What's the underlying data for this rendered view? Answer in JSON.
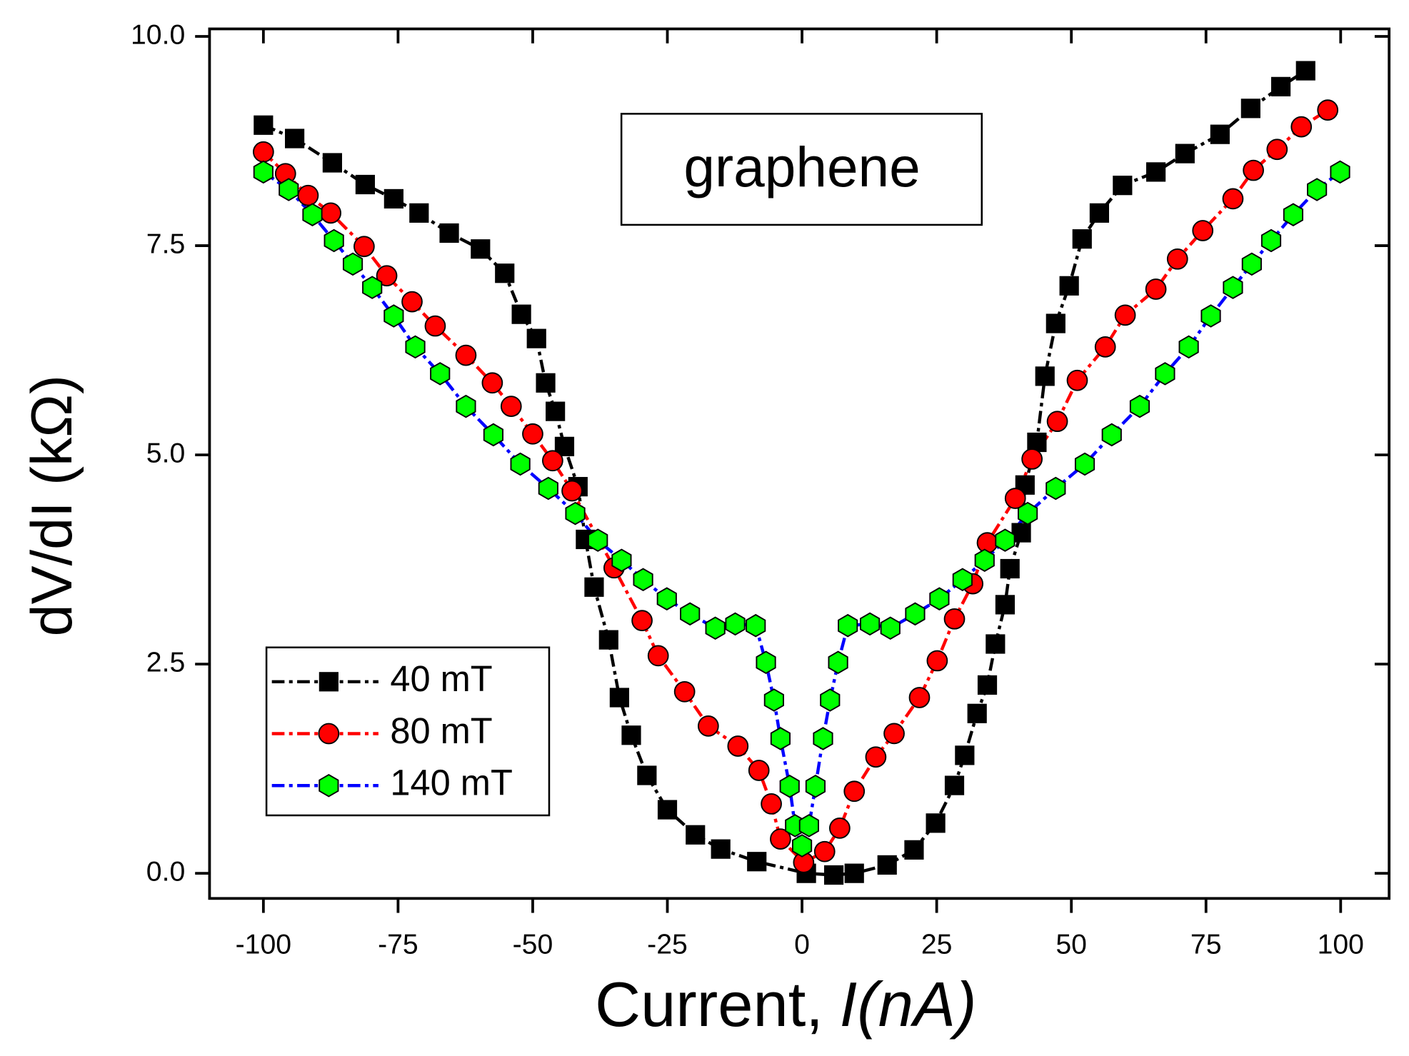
{
  "chart_data": {
    "type": "line",
    "annotation": "graphene",
    "x_label": "Current,",
    "x_label_italic": "I(nA)",
    "y_label": "dV/dI (kΩ)",
    "xlim": [
      -110,
      109
    ],
    "ylim": [
      -0.3,
      10.09
    ],
    "xticks": [
      -100,
      -75,
      -50,
      -25,
      0,
      25,
      50,
      75,
      100
    ],
    "yticks": [
      {
        "value": 0,
        "label": "0.0"
      },
      2.5,
      {
        "value": 5,
        "label": "5.0"
      },
      7.5,
      {
        "value": 10,
        "label": "10.0"
      }
    ],
    "legend": "lower left",
    "grid": false,
    "series": [
      {
        "name": "40 mT",
        "color": "#000000",
        "marker_color": "#000000",
        "marker": "square",
        "x": [
          -100,
          -94.2,
          -87.2,
          -81.1,
          -75.8,
          -71.1,
          -65.5,
          -59.7,
          -55.2,
          -52.1,
          -49.3,
          -47.6,
          -45.8,
          -44.1,
          -41.6,
          -40.2,
          -38.6,
          -35.9,
          -33.9,
          -31.7,
          -28.8,
          -25.0,
          -19.8,
          -15.1,
          -8.4,
          0.8,
          5.9,
          9.7,
          15.8,
          20.8,
          24.8,
          28.3,
          30.2,
          32.5,
          34.4,
          35.9,
          37.7,
          38.6,
          40.7,
          41.4,
          43.6,
          45.1,
          47.1,
          49.6,
          52.0,
          55.2,
          59.5,
          65.7,
          71.1,
          77.6,
          83.3,
          88.9,
          93.5
        ],
        "values": [
          8.94,
          8.78,
          8.49,
          8.23,
          8.06,
          7.89,
          7.65,
          7.46,
          7.17,
          6.68,
          6.39,
          5.86,
          5.52,
          5.1,
          4.62,
          3.99,
          3.42,
          2.79,
          2.1,
          1.65,
          1.17,
          0.76,
          0.46,
          0.29,
          0.14,
          0.0,
          -0.02,
          0.0,
          0.1,
          0.28,
          0.6,
          1.05,
          1.41,
          1.91,
          2.25,
          2.74,
          3.21,
          3.64,
          4.07,
          4.64,
          5.15,
          5.94,
          6.57,
          7.02,
          7.58,
          7.89,
          8.22,
          8.38,
          8.6,
          8.83,
          9.14,
          9.4,
          9.59
        ]
      },
      {
        "name": "80 mT",
        "color": "#ff0000",
        "marker_color": "#ff0000",
        "marker": "circle",
        "x": [
          -100,
          -95.9,
          -91.7,
          -87.5,
          -81.3,
          -77.1,
          -72.4,
          -68.1,
          -62.4,
          -57.5,
          -54.0,
          -50.0,
          -46.3,
          -42.7,
          -34.9,
          -29.7,
          -26.7,
          -21.8,
          -17.4,
          -11.9,
          -8.0,
          -5.7,
          -4.0,
          0.3,
          4.2,
          7.0,
          9.7,
          13.7,
          17.1,
          21.8,
          25.1,
          28.3,
          31.7,
          34.4,
          39.6,
          42.7,
          47.4,
          51.1,
          56.3,
          60.0,
          65.7,
          69.7,
          74.4,
          80.0,
          83.8,
          88.2,
          92.7,
          97.6
        ],
        "values": [
          8.62,
          8.36,
          8.1,
          7.89,
          7.49,
          7.14,
          6.83,
          6.54,
          6.19,
          5.86,
          5.58,
          5.25,
          4.93,
          4.57,
          3.65,
          3.02,
          2.6,
          2.17,
          1.76,
          1.52,
          1.23,
          0.83,
          0.41,
          0.13,
          0.26,
          0.54,
          0.98,
          1.39,
          1.67,
          2.1,
          2.54,
          3.04,
          3.46,
          3.95,
          4.48,
          4.95,
          5.4,
          5.89,
          6.29,
          6.67,
          6.98,
          7.34,
          7.68,
          8.06,
          8.4,
          8.65,
          8.92,
          9.12
        ]
      },
      {
        "name": "140 mT",
        "color": "#0000ff",
        "marker_color": "#00ff00",
        "marker": "hexagon",
        "x": [
          -100,
          -95.3,
          -90.9,
          -86.9,
          -83.4,
          -79.8,
          -75.8,
          -71.8,
          -67.2,
          -62.4,
          -57.3,
          -52.3,
          -47.1,
          -42.1,
          -37.9,
          -33.5,
          -29.5,
          -25.1,
          -20.8,
          -16.1,
          -12.4,
          -8.6,
          -6.7,
          -5.2,
          -4.0,
          -2.3,
          -1.3,
          0.0,
          1.3,
          2.5,
          3.9,
          5.2,
          6.7,
          8.5,
          12.6,
          16.4,
          21.0,
          25.5,
          29.8,
          33.9,
          37.7,
          41.9,
          47.1,
          52.5,
          57.5,
          62.7,
          67.4,
          71.8,
          75.9,
          80.0,
          83.5,
          87.1,
          91.2,
          95.6,
          99.9
        ],
        "values": [
          8.38,
          8.17,
          7.87,
          7.56,
          7.28,
          7.0,
          6.66,
          6.29,
          5.97,
          5.58,
          5.24,
          4.89,
          4.6,
          4.3,
          3.98,
          3.74,
          3.51,
          3.28,
          3.1,
          2.93,
          2.98,
          2.96,
          2.52,
          2.07,
          1.61,
          1.04,
          0.57,
          0.33,
          0.57,
          1.04,
          1.61,
          2.07,
          2.52,
          2.96,
          2.98,
          2.93,
          3.1,
          3.28,
          3.51,
          3.74,
          3.98,
          4.3,
          4.6,
          4.89,
          5.24,
          5.58,
          5.97,
          6.29,
          6.66,
          7.0,
          7.28,
          7.56,
          7.87,
          8.17,
          8.38
        ]
      }
    ]
  }
}
